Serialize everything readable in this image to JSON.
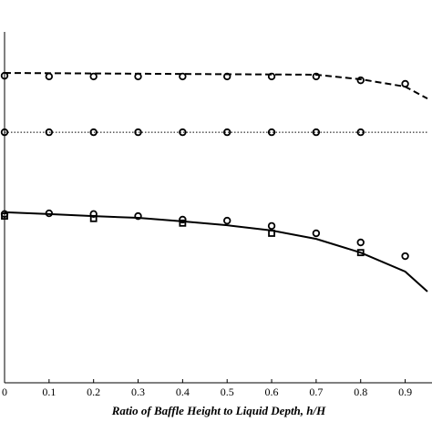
{
  "chart_data": {
    "type": "line",
    "x_label": "Ratio of Baffle Height to Liquid Depth, h/H",
    "xlim": [
      0,
      0.95
    ],
    "ylim": [
      0,
      1
    ],
    "xticks": [
      0,
      0.1,
      0.2,
      0.3,
      0.4,
      0.5,
      0.6,
      0.7,
      0.8,
      0.9
    ],
    "series": [
      {
        "color": "#000",
        "dash": "dashed",
        "marker": "none",
        "x": [
          0,
          0.7,
          0.8,
          0.9,
          0.95
        ],
        "values": [
          0.883,
          0.878,
          0.865,
          0.844,
          0.81
        ]
      },
      {
        "color": "#000",
        "dash": "none",
        "marker": "circle",
        "x": [
          0,
          0.1,
          0.2,
          0.3,
          0.4,
          0.5,
          0.6,
          0.7,
          0.8,
          0.9
        ],
        "values": [
          0.875,
          0.873,
          0.873,
          0.873,
          0.873,
          0.873,
          0.873,
          0.873,
          0.862,
          0.852
        ]
      },
      {
        "color": "#000",
        "dash": "dotted",
        "marker": "none",
        "x": [
          0,
          0.95
        ],
        "values": [
          0.714,
          0.714
        ]
      },
      {
        "color": "#000",
        "dash": "none",
        "marker": "circle",
        "x": [
          0,
          0.1,
          0.2,
          0.3,
          0.4,
          0.5,
          0.6,
          0.7,
          0.8
        ],
        "values": [
          0.714,
          0.714,
          0.714,
          0.714,
          0.714,
          0.714,
          0.714,
          0.714,
          0.714
        ]
      },
      {
        "color": "#000",
        "dash": "solid",
        "marker": "none",
        "x": [
          0,
          0.1,
          0.2,
          0.3,
          0.4,
          0.5,
          0.6,
          0.7,
          0.8,
          0.9,
          0.95
        ],
        "values": [
          0.486,
          0.481,
          0.475,
          0.47,
          0.46,
          0.449,
          0.434,
          0.41,
          0.371,
          0.317,
          0.26
        ]
      },
      {
        "color": "#000",
        "dash": "none",
        "marker": "circle",
        "x": [
          0,
          0.1,
          0.2,
          0.3,
          0.4,
          0.5,
          0.6,
          0.7,
          0.8,
          0.9
        ],
        "values": [
          0.481,
          0.483,
          0.481,
          0.475,
          0.465,
          0.462,
          0.447,
          0.426,
          0.4,
          0.361
        ]
      },
      {
        "color": "#000",
        "dash": "none",
        "marker": "square",
        "x": [
          0,
          0.2,
          0.4,
          0.6,
          0.8
        ],
        "values": [
          0.475,
          0.468,
          0.455,
          0.426,
          0.371
        ]
      }
    ]
  }
}
